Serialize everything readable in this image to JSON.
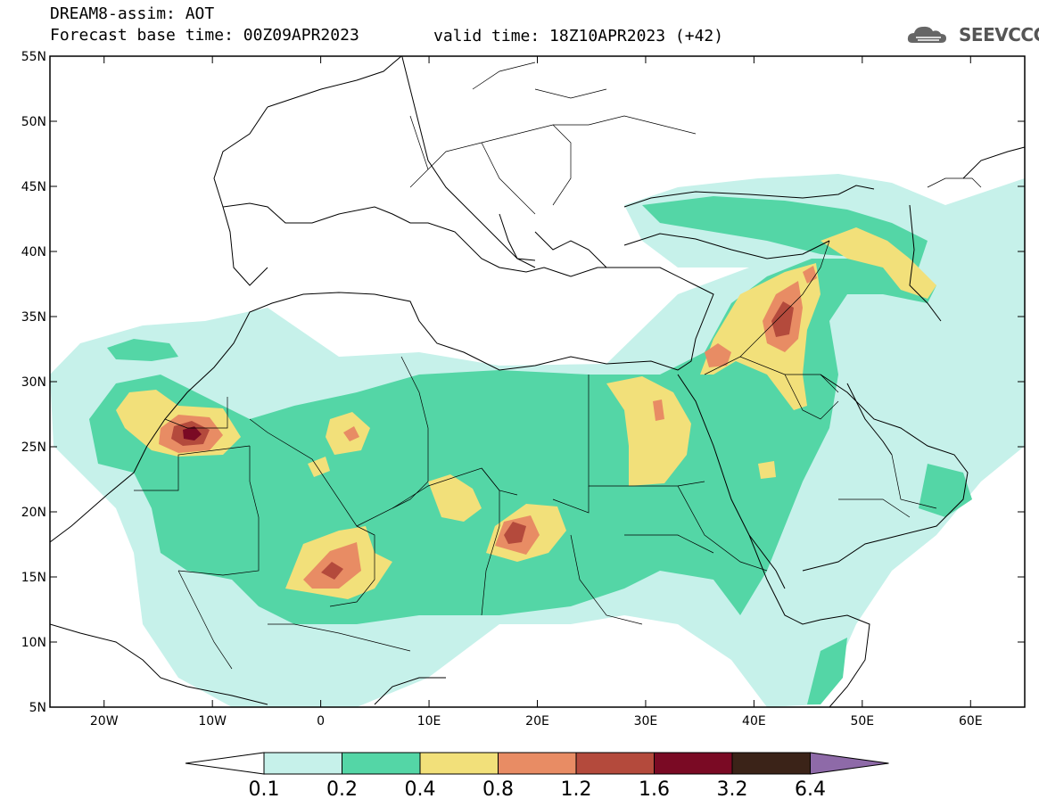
{
  "header": {
    "title": "DREAM8-assim: AOT",
    "base_time": "Forecast base time: 00Z09APR2023",
    "valid_time": "valid time: 18Z10APR2023 (+42)",
    "logo_text": "SEEVCCC"
  },
  "map": {
    "lon_range": [
      -25,
      65
    ],
    "lat_range": [
      5,
      55
    ],
    "lon_ticks": [
      {
        "lon": -20,
        "label": "20W"
      },
      {
        "lon": -10,
        "label": "10W"
      },
      {
        "lon": 0,
        "label": "0"
      },
      {
        "lon": 10,
        "label": "10E"
      },
      {
        "lon": 20,
        "label": "20E"
      },
      {
        "lon": 30,
        "label": "30E"
      },
      {
        "lon": 40,
        "label": "40E"
      },
      {
        "lon": 50,
        "label": "50E"
      },
      {
        "lon": 60,
        "label": "60E"
      }
    ],
    "lat_ticks": [
      {
        "lat": 55,
        "label": "55N"
      },
      {
        "lat": 50,
        "label": "50N"
      },
      {
        "lat": 45,
        "label": "45N"
      },
      {
        "lat": 40,
        "label": "40N"
      },
      {
        "lat": 35,
        "label": "35N"
      },
      {
        "lat": 30,
        "label": "30N"
      },
      {
        "lat": 25,
        "label": "25N"
      },
      {
        "lat": 20,
        "label": "20N"
      },
      {
        "lat": 15,
        "label": "15N"
      },
      {
        "lat": 10,
        "label": "10N"
      },
      {
        "lat": 5,
        "label": "5N"
      }
    ],
    "variable": "AOT"
  },
  "colorbar": {
    "levels": [
      "0.1",
      "0.2",
      "0.4",
      "0.8",
      "1.2",
      "1.6",
      "3.2",
      "6.4"
    ],
    "colors": [
      "#c6f1ea",
      "#54d6a6",
      "#f2e07a",
      "#e88c64",
      "#b44a3c",
      "#7a0a24",
      "#3b2318",
      "#8e6aa8"
    ]
  }
}
